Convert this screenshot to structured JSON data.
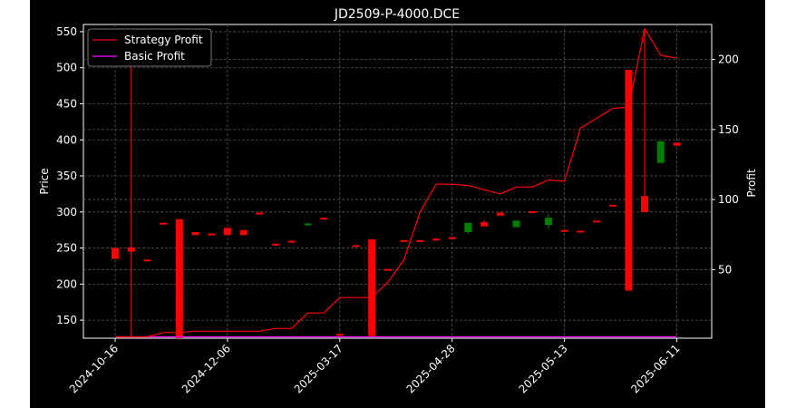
{
  "chart_data": {
    "type": "candlestick-with-line",
    "title": "JD2509-P-4000.DCE",
    "ylabel_left": "Price",
    "ylabel_right": "Profit",
    "xlabel": "",
    "ylim_left": [
      125,
      560
    ],
    "ylim_right": [
      1,
      225
    ],
    "yticks_left": [
      150,
      200,
      250,
      300,
      350,
      400,
      450,
      500,
      550
    ],
    "yticks_right": [
      50,
      100,
      150,
      200
    ],
    "x_ticks": [
      {
        "i": 0,
        "label": "2024-10-16"
      },
      {
        "i": 7,
        "label": "2024-12-06"
      },
      {
        "i": 14,
        "label": "2025-03-17"
      },
      {
        "i": 21,
        "label": "2025-04-28"
      },
      {
        "i": 28,
        "label": "2025-05-13"
      },
      {
        "i": 35,
        "label": "2025-06-11"
      }
    ],
    "n_points": 36,
    "grid": true,
    "legend_position": "top-left",
    "background": "#000000",
    "figure_background": "#ffffff",
    "colors": {
      "up": "#008000",
      "down": "#ff0000",
      "strategy": "#ff0000",
      "basic": "#ff00ff",
      "grid": "#555555",
      "text": "#ffffff"
    },
    "candles": [
      {
        "i": 0,
        "o": 250,
        "c": 235,
        "h": 250,
        "l": 235
      },
      {
        "i": 1,
        "o": 251,
        "c": 245,
        "h": 251,
        "l": 245
      },
      {
        "i": 2,
        "o": 234,
        "c": 233,
        "h": 234,
        "l": 233
      },
      {
        "i": 3,
        "o": 285,
        "c": 284,
        "h": 285,
        "l": 284
      },
      {
        "i": 4,
        "o": 290,
        "c": 125,
        "h": 290,
        "l": 125
      },
      {
        "i": 5,
        "o": 272,
        "c": 268,
        "h": 272,
        "l": 268
      },
      {
        "i": 6,
        "o": 270,
        "c": 269,
        "h": 270,
        "l": 269
      },
      {
        "i": 7,
        "o": 278,
        "c": 268,
        "h": 278,
        "l": 268
      },
      {
        "i": 8,
        "o": 275,
        "c": 268,
        "h": 275,
        "l": 268
      },
      {
        "i": 9,
        "o": 299,
        "c": 297,
        "h": 299,
        "l": 297
      },
      {
        "i": 10,
        "o": 256,
        "c": 255,
        "h": 256,
        "l": 255
      },
      {
        "i": 11,
        "o": 260,
        "c": 259,
        "h": 260,
        "l": 259
      },
      {
        "i": 12,
        "o": 282,
        "c": 284,
        "h": 285,
        "l": 281
      },
      {
        "i": 13,
        "o": 292,
        "c": 291,
        "h": 292,
        "l": 291
      },
      {
        "i": 14,
        "o": 131,
        "c": 130,
        "h": 131,
        "l": 130
      },
      {
        "i": 15,
        "o": 254,
        "c": 253,
        "h": 254,
        "l": 253
      },
      {
        "i": 16,
        "o": 262,
        "c": 128,
        "h": 262,
        "l": 128
      },
      {
        "i": 17,
        "o": 221,
        "c": 220,
        "h": 221,
        "l": 220
      },
      {
        "i": 18,
        "o": 261,
        "c": 260,
        "h": 261,
        "l": 260
      },
      {
        "i": 19,
        "o": 261,
        "c": 260,
        "h": 261,
        "l": 260
      },
      {
        "i": 20,
        "o": 263,
        "c": 262,
        "h": 263,
        "l": 262
      },
      {
        "i": 21,
        "o": 265,
        "c": 264,
        "h": 265,
        "l": 264
      },
      {
        "i": 22,
        "o": 272,
        "c": 285,
        "h": 285,
        "l": 270
      },
      {
        "i": 23,
        "o": 286,
        "c": 280,
        "h": 289,
        "l": 280
      },
      {
        "i": 24,
        "o": 299,
        "c": 295,
        "h": 299,
        "l": 295
      },
      {
        "i": 25,
        "o": 279,
        "c": 288,
        "h": 288,
        "l": 279
      },
      {
        "i": 26,
        "o": 301,
        "c": 300,
        "h": 301,
        "l": 300
      },
      {
        "i": 27,
        "o": 282,
        "c": 292,
        "h": 298,
        "l": 277
      },
      {
        "i": 28,
        "o": 275,
        "c": 273,
        "h": 275,
        "l": 273
      },
      {
        "i": 29,
        "o": 274,
        "c": 273,
        "h": 274,
        "l": 273
      },
      {
        "i": 30,
        "o": 288,
        "c": 287,
        "h": 288,
        "l": 287
      },
      {
        "i": 31,
        "o": 310,
        "c": 308,
        "h": 310,
        "l": 308
      },
      {
        "i": 32,
        "o": 497,
        "c": 191,
        "h": 497,
        "l": 191
      },
      {
        "i": 33,
        "o": 322,
        "c": 300,
        "h": 322,
        "l": 300
      },
      {
        "i": 34,
        "o": 368,
        "c": 398,
        "h": 398,
        "l": 368
      },
      {
        "i": 35,
        "o": 396,
        "c": 392,
        "h": 396,
        "l": 392
      }
    ],
    "series": [
      {
        "name": "Strategy Profit",
        "axis": "right",
        "color": "#ff0000",
        "points": [
          [
            0,
            2
          ],
          [
            1,
            2
          ],
          [
            1,
            215
          ],
          [
            1,
            2
          ],
          [
            2,
            2
          ],
          [
            3,
            5
          ],
          [
            4,
            5
          ],
          [
            5,
            6
          ],
          [
            6,
            6
          ],
          [
            7,
            6
          ],
          [
            8,
            6
          ],
          [
            9,
            6
          ],
          [
            10,
            8
          ],
          [
            11,
            8
          ],
          [
            12,
            19
          ],
          [
            13,
            19
          ],
          [
            14,
            30
          ],
          [
            15,
            30
          ],
          [
            16,
            30
          ],
          [
            17,
            41
          ],
          [
            18,
            57
          ],
          [
            19,
            91
          ],
          [
            20,
            111
          ],
          [
            21,
            111
          ],
          [
            22,
            110
          ],
          [
            23,
            107
          ],
          [
            24,
            104
          ],
          [
            25,
            109
          ],
          [
            26,
            109
          ],
          [
            27,
            114
          ],
          [
            28,
            113
          ],
          [
            29,
            151
          ],
          [
            30,
            158
          ],
          [
            31,
            165
          ],
          [
            32,
            166
          ],
          [
            33,
            222
          ],
          [
            33,
            92
          ],
          [
            33,
            222
          ],
          [
            34,
            203
          ],
          [
            35,
            201
          ]
        ]
      },
      {
        "name": "Basic Profit",
        "axis": "right",
        "color": "#ff00ff",
        "points": [
          [
            0,
            2
          ],
          [
            35,
            2
          ]
        ]
      }
    ]
  }
}
